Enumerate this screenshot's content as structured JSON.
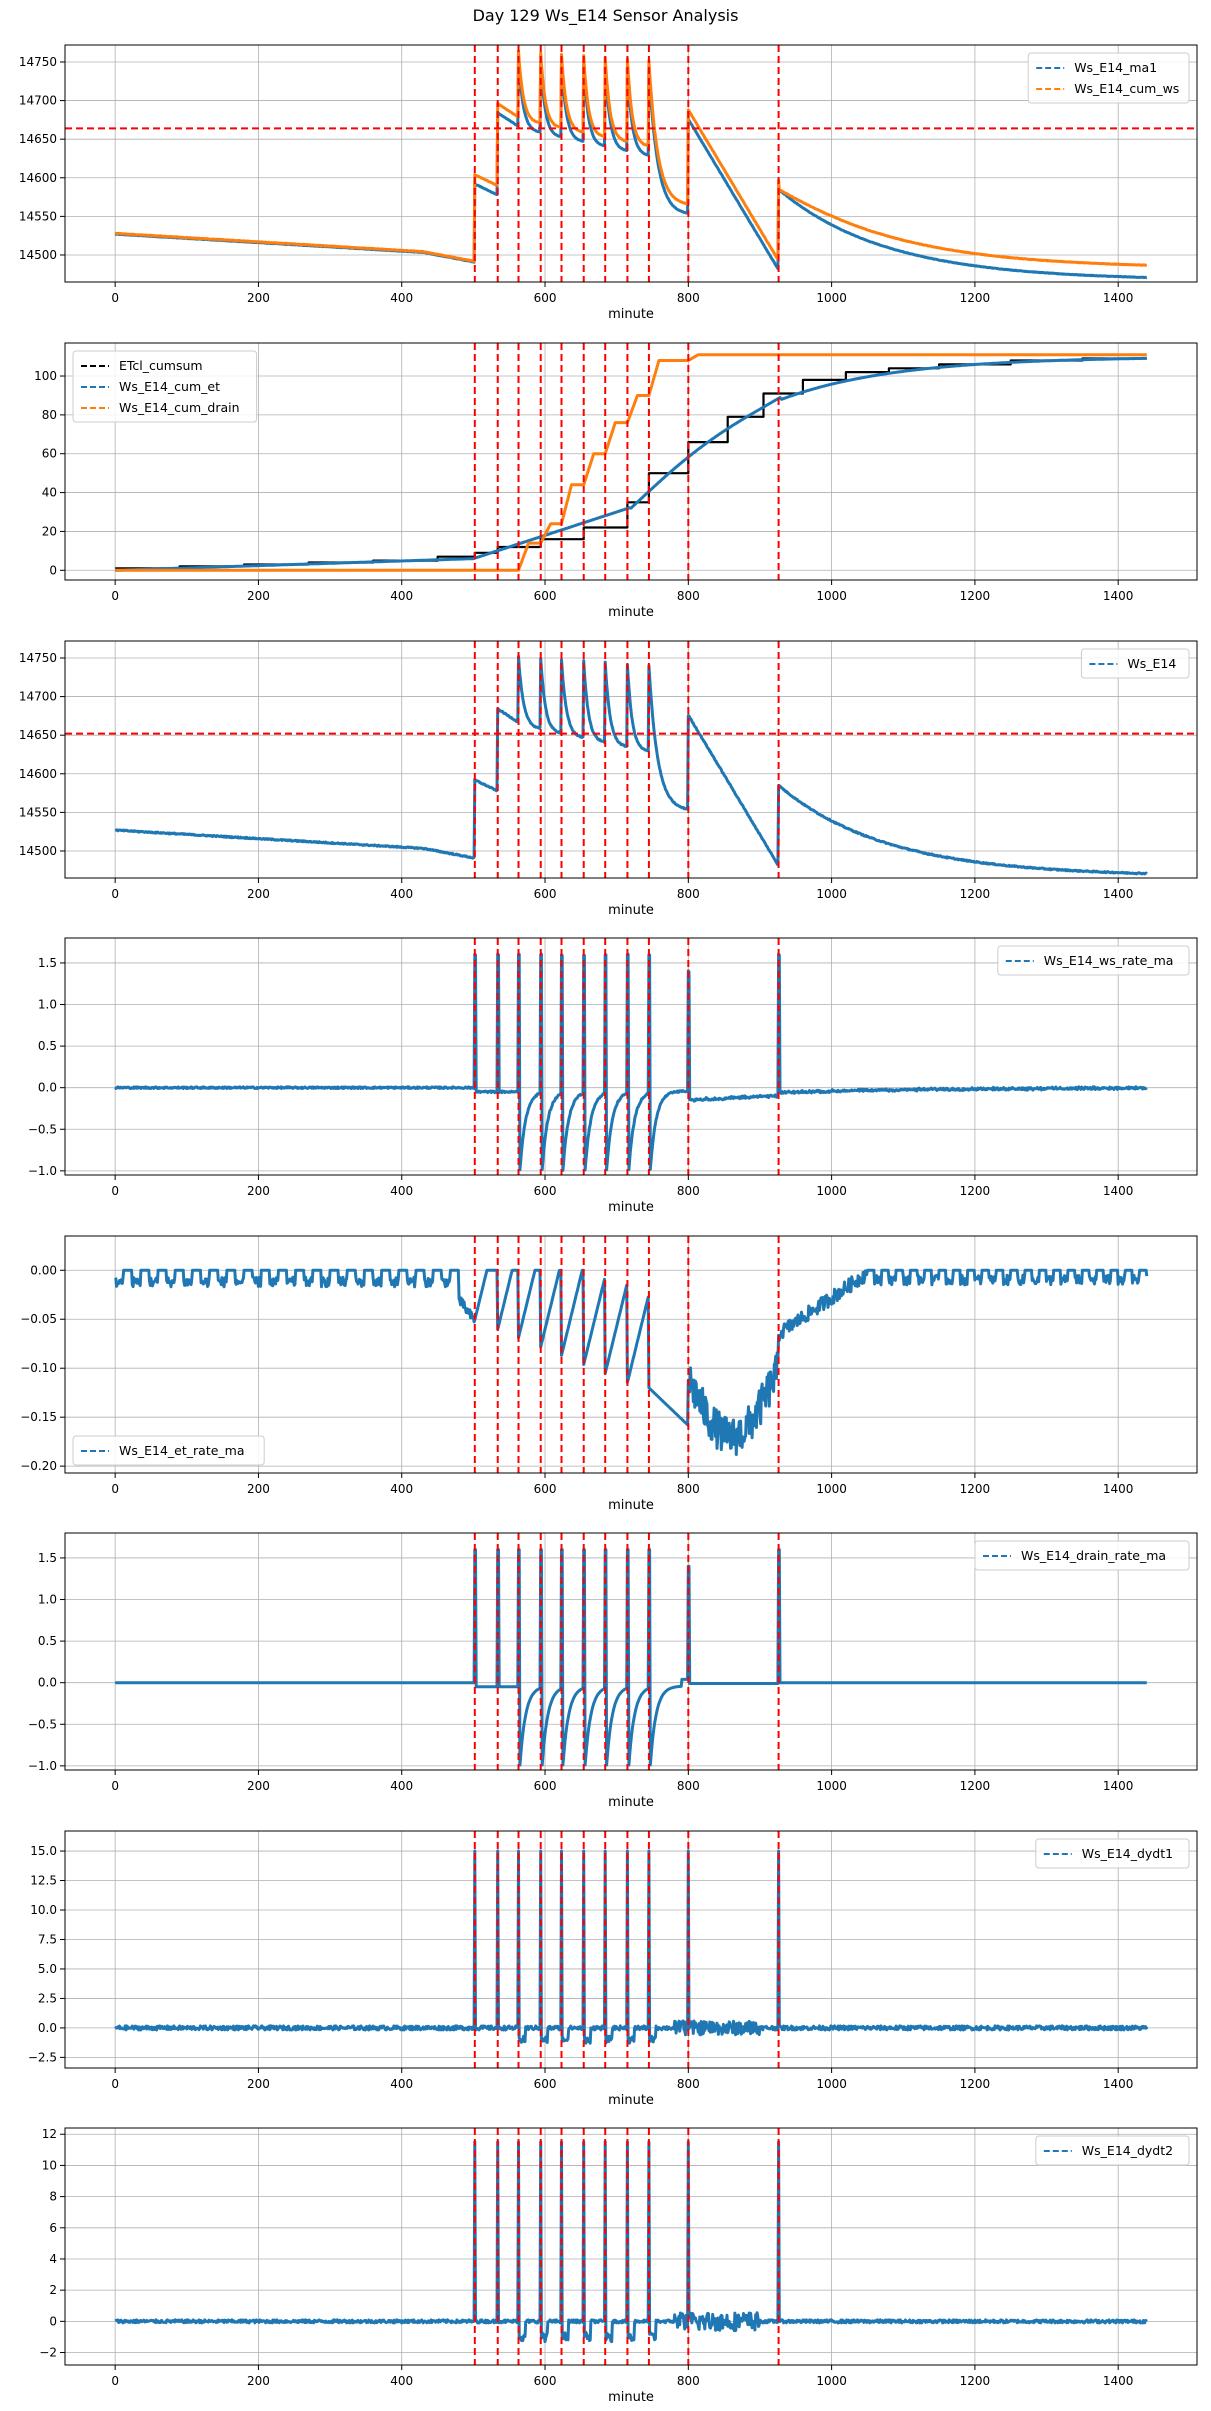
{
  "figure_title": "Day 129 Ws_E14 Sensor Analysis",
  "colors": {
    "blue": "#1f77b4",
    "orange": "#ff7f0e",
    "black": "#000000",
    "red": "#ff0000",
    "grid": "#b0b0b0"
  },
  "event_minutes": [
    502,
    534,
    563,
    594,
    623,
    654,
    684,
    715,
    745,
    800,
    926
  ],
  "chart_data": [
    {
      "type": "line",
      "xlabel": "minute",
      "xlim": [
        -70,
        1510
      ],
      "ylim": [
        14465,
        14772
      ],
      "xticks": [
        0,
        200,
        400,
        600,
        800,
        1000,
        1200,
        1400
      ],
      "yticks": [
        14500,
        14550,
        14600,
        14650,
        14700,
        14750
      ],
      "ytick_labels": [
        "14500",
        "14550",
        "14600",
        "14650",
        "14700",
        "14750"
      ],
      "hline": 14664,
      "legend_loc": "upper right",
      "series": [
        {
          "name": "Ws_E14_ma1",
          "color": "#1f77b4",
          "shape": "ws_main",
          "offset": 0
        },
        {
          "name": "Ws_E14_cum_ws",
          "color": "#ff7f0e",
          "shape": "ws_main",
          "offset": 1
        }
      ]
    },
    {
      "type": "line",
      "xlabel": "minute",
      "xlim": [
        -70,
        1510
      ],
      "ylim": [
        -5,
        117
      ],
      "xticks": [
        0,
        200,
        400,
        600,
        800,
        1000,
        1200,
        1400
      ],
      "yticks": [
        0,
        20,
        40,
        60,
        80,
        100
      ],
      "ytick_labels": [
        "0",
        "20",
        "40",
        "60",
        "80",
        "100"
      ],
      "legend_loc": "upper left",
      "series": [
        {
          "name": "ETcl_cumsum",
          "color": "#000000",
          "shape": "etcl"
        },
        {
          "name": "Ws_E14_cum_et",
          "color": "#1f77b4",
          "shape": "cum_et"
        },
        {
          "name": "Ws_E14_cum_drain",
          "color": "#ff7f0e",
          "shape": "cum_drain"
        }
      ]
    },
    {
      "type": "line",
      "xlabel": "minute",
      "xlim": [
        -70,
        1510
      ],
      "ylim": [
        14465,
        14772
      ],
      "xticks": [
        0,
        200,
        400,
        600,
        800,
        1000,
        1200,
        1400
      ],
      "yticks": [
        14500,
        14550,
        14600,
        14650,
        14700,
        14750
      ],
      "ytick_labels": [
        "14500",
        "14550",
        "14600",
        "14650",
        "14700",
        "14750"
      ],
      "hline": 14652,
      "legend_loc": "upper right",
      "series": [
        {
          "name": "Ws_E14",
          "color": "#1f77b4",
          "shape": "ws_raw",
          "offset": 0
        }
      ]
    },
    {
      "type": "line",
      "xlabel": "minute",
      "xlim": [
        -70,
        1510
      ],
      "ylim": [
        -1.05,
        1.8
      ],
      "xticks": [
        0,
        200,
        400,
        600,
        800,
        1000,
        1200,
        1400
      ],
      "yticks": [
        -1.0,
        -0.5,
        0.0,
        0.5,
        1.0,
        1.5
      ],
      "ytick_labels": [
        "−1.0",
        "−0.5",
        "0.0",
        "0.5",
        "1.0",
        "1.5"
      ],
      "legend_loc": "upper right",
      "series": [
        {
          "name": "Ws_E14_ws_rate_ma",
          "color": "#1f77b4",
          "shape": "ws_rate"
        }
      ]
    },
    {
      "type": "line",
      "xlabel": "minute",
      "xlim": [
        -70,
        1510
      ],
      "ylim": [
        -0.207,
        0.035
      ],
      "xticks": [
        0,
        200,
        400,
        600,
        800,
        1000,
        1200,
        1400
      ],
      "yticks": [
        -0.2,
        -0.15,
        -0.1,
        -0.05,
        0.0
      ],
      "ytick_labels": [
        "−0.20",
        "−0.15",
        "−0.10",
        "−0.05",
        "0.00"
      ],
      "legend_loc": "lower left",
      "series": [
        {
          "name": "Ws_E14_et_rate_ma",
          "color": "#1f77b4",
          "shape": "et_rate"
        }
      ]
    },
    {
      "type": "line",
      "xlabel": "minute",
      "xlim": [
        -70,
        1510
      ],
      "ylim": [
        -1.05,
        1.8
      ],
      "xticks": [
        0,
        200,
        400,
        600,
        800,
        1000,
        1200,
        1400
      ],
      "yticks": [
        -1.0,
        -0.5,
        0.0,
        0.5,
        1.0,
        1.5
      ],
      "ytick_labels": [
        "−1.0",
        "−0.5",
        "0.0",
        "0.5",
        "1.0",
        "1.5"
      ],
      "legend_loc": "upper right",
      "series": [
        {
          "name": "Ws_E14_drain_rate_ma",
          "color": "#1f77b4",
          "shape": "drain_rate"
        }
      ]
    },
    {
      "type": "line",
      "xlabel": "minute",
      "xlim": [
        -70,
        1510
      ],
      "ylim": [
        -3.4,
        16.7
      ],
      "xticks": [
        0,
        200,
        400,
        600,
        800,
        1000,
        1200,
        1400
      ],
      "yticks": [
        -2.5,
        0.0,
        2.5,
        5.0,
        7.5,
        10.0,
        12.5,
        15.0
      ],
      "ytick_labels": [
        "−2.5",
        "0.0",
        "2.5",
        "5.0",
        "7.5",
        "10.0",
        "12.5",
        "15.0"
      ],
      "legend_loc": "upper right",
      "series": [
        {
          "name": "Ws_E14_dydt1",
          "color": "#1f77b4",
          "shape": "dydt1"
        }
      ]
    },
    {
      "type": "line",
      "xlabel": "minute",
      "xlim": [
        -70,
        1510
      ],
      "ylim": [
        -2.8,
        12.4
      ],
      "xticks": [
        0,
        200,
        400,
        600,
        800,
        1000,
        1200,
        1400
      ],
      "yticks": [
        -2,
        0,
        2,
        4,
        6,
        8,
        10,
        12
      ],
      "ytick_labels": [
        "−2",
        "0",
        "2",
        "4",
        "6",
        "8",
        "10",
        "12"
      ],
      "legend_loc": "upper right",
      "series": [
        {
          "name": "Ws_E14_dydt2",
          "color": "#1f77b4",
          "shape": "dydt2"
        }
      ]
    }
  ]
}
